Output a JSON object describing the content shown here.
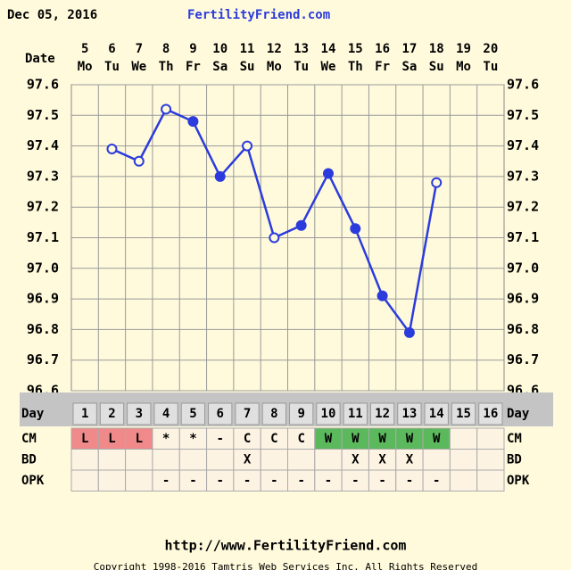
{
  "chart_data": {
    "type": "line",
    "date": "Dec 05, 2016",
    "title": "FertilityFriend.com",
    "date_label": "Date",
    "categories": [
      "5",
      "6",
      "7",
      "8",
      "9",
      "10",
      "11",
      "12",
      "13",
      "14",
      "15",
      "16",
      "17",
      "18",
      "19",
      "20"
    ],
    "weekdays": [
      "Mo",
      "Tu",
      "We",
      "Th",
      "Fr",
      "Sa",
      "Su",
      "Mo",
      "Tu",
      "We",
      "Th",
      "Fr",
      "Sa",
      "Su",
      "Mo",
      "Tu"
    ],
    "series": [
      {
        "color": "#2b3bdc",
        "values": [
          null,
          97.39,
          97.35,
          97.52,
          97.48,
          97.3,
          97.4,
          97.1,
          97.14,
          97.31,
          97.13,
          96.91,
          96.79,
          97.28,
          null,
          null
        ],
        "hollow": [
          false,
          true,
          true,
          true,
          false,
          false,
          true,
          true,
          false,
          false,
          false,
          false,
          false,
          true,
          false,
          false
        ]
      }
    ],
    "ylim": [
      96.6,
      97.6
    ],
    "yticks": [
      96.6,
      96.7,
      96.8,
      96.9,
      {
        "value": 97,
        "label": "97.0"
      },
      97.1,
      97.2,
      97.3,
      97.4,
      97.5,
      97.6
    ],
    "grid": true,
    "table": {
      "day_label": "Day",
      "days": [
        "1",
        "2",
        "3",
        "4",
        "5",
        "6",
        "7",
        "8",
        "9",
        "10",
        "11",
        "12",
        "13",
        "14",
        "15",
        "16"
      ],
      "rows": [
        {
          "label": "CM",
          "cells": [
            "L",
            "L",
            "L",
            "*",
            "*",
            "-",
            "C",
            "C",
            "C",
            "W",
            "W",
            "W",
            "W",
            "W",
            null,
            null
          ],
          "colors": [
            "#f08a8a",
            "#f08a8a",
            "#f08a8a",
            null,
            null,
            null,
            null,
            null,
            null,
            "#5cb85c",
            "#5cb85c",
            "#5cb85c",
            "#5cb85c",
            "#5cb85c",
            null,
            null
          ]
        },
        {
          "label": "BD",
          "cells": [
            null,
            null,
            null,
            null,
            null,
            null,
            "X",
            null,
            null,
            null,
            "X",
            "X",
            "X",
            null,
            null,
            null
          ]
        },
        {
          "label": "OPK",
          "cells": [
            null,
            null,
            null,
            "-",
            "-",
            "-",
            "-",
            "-",
            "-",
            "-",
            "-",
            "-",
            "-",
            "-",
            null,
            null
          ]
        }
      ]
    },
    "footer_url": "http://www.FertilityFriend.com",
    "copyright": "Copyright 1998-2016 Tamtris Web Services Inc.   All Rights Reserved"
  }
}
